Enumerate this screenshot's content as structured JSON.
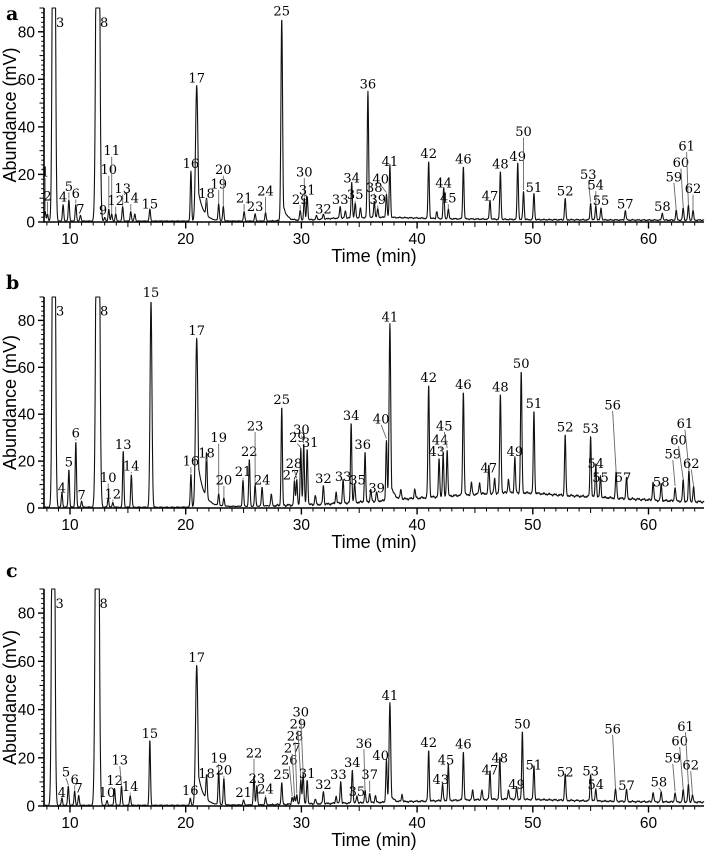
{
  "figure": {
    "x_axis_label": "Time (min)",
    "y_axis_label": "Abundance (mV)",
    "x_ticks": [
      10,
      20,
      30,
      40,
      50,
      60
    ],
    "y_ticks": [
      0,
      20,
      40,
      60,
      80
    ],
    "x_range": [
      7.75,
      64.8
    ],
    "y_range": [
      0,
      90
    ],
    "trace_color": "#111111",
    "axis_color": "#000000",
    "leader_color": "#666666",
    "background": "#ffffff"
  },
  "peak_format": [
    "label",
    "time_min",
    "height_mV",
    "label_y_mV",
    "label_x_min",
    "sigma_min",
    "tail_amp",
    "tail_len_min"
  ],
  "chart_data": [
    {
      "type": "line",
      "panel_letter": "a",
      "xlabel": "Time (min)",
      "ylabel": "Abundance (mV)",
      "baseline": [
        [
          7.7,
          0.4
        ],
        [
          27,
          0.4
        ],
        [
          29,
          0.6
        ],
        [
          31,
          1.0
        ],
        [
          33,
          1.6
        ],
        [
          35,
          1.8
        ],
        [
          37,
          2.0
        ],
        [
          39,
          1.8
        ],
        [
          42,
          1.4
        ],
        [
          46,
          1.2
        ],
        [
          50,
          1.0
        ],
        [
          55,
          0.9
        ],
        [
          60,
          0.8
        ],
        [
          64.8,
          0.8
        ]
      ],
      "peaks": [
        [
          1,
          7.85,
          4,
          21
        ],
        [
          2,
          8.05,
          3,
          11
        ],
        [
          3,
          8.6,
          300,
          84,
          9.15,
          0.1
        ],
        [
          4,
          9.4,
          7,
          10.5
        ],
        [
          5,
          9.9,
          9,
          15
        ],
        [
          6,
          10.5,
          7,
          12
        ],
        [
          7,
          10.9,
          2.5,
          5.5
        ],
        [
          8,
          12.4,
          300,
          84,
          12.95,
          0.12
        ],
        [
          9,
          13.0,
          1.5,
          5,
          12.85
        ],
        [
          10,
          13.35,
          5,
          22
        ],
        [
          11,
          13.6,
          3,
          30
        ],
        [
          12,
          13.95,
          3,
          9
        ],
        [
          13,
          14.55,
          6,
          14
        ],
        [
          14,
          15.25,
          4,
          10
        ],
        [
          "",
          15.6,
          3
        ],
        [
          15,
          16.9,
          5,
          7.5
        ],
        [
          16,
          20.45,
          21
        ],
        [
          17,
          20.95,
          57,
          null,
          null,
          0.1,
          0.3,
          0.45
        ],
        [
          18,
          21.8,
          7,
          12
        ],
        [
          19,
          22.85,
          7,
          16
        ],
        [
          20,
          23.25,
          6,
          22
        ],
        [
          21,
          25.05,
          4,
          10
        ],
        [
          23,
          26.0,
          3,
          6.5
        ],
        [
          24,
          26.9,
          3.5,
          13
        ],
        [
          25,
          28.3,
          85,
          null,
          null,
          0.07,
          0.12,
          0.3
        ],
        [
          29,
          29.9,
          4,
          9.5
        ],
        [
          30,
          30.25,
          9,
          21
        ],
        [
          31,
          30.5,
          10,
          13.5
        ],
        [
          "",
          31.3,
          1.5
        ],
        [
          32,
          31.9,
          2,
          5.5
        ],
        [
          33,
          33.35,
          5,
          9.5
        ],
        [
          "",
          33.8,
          3
        ],
        [
          34,
          34.35,
          15,
          18.5
        ],
        [
          35,
          34.65,
          6,
          11.5
        ],
        [
          "",
          35.1,
          4
        ],
        [
          36,
          35.75,
          53,
          null,
          null,
          0.06
        ],
        [
          38,
          36.3,
          7,
          14.5
        ],
        [
          39,
          36.6,
          3.5,
          9.5
        ],
        [
          40,
          37.35,
          10,
          18,
          36.85
        ],
        [
          41,
          37.65,
          22,
          25.5
        ],
        [
          42,
          41.0,
          24
        ],
        [
          "",
          41.7,
          3
        ],
        [
          44,
          42.3,
          13,
          16.5
        ],
        [
          45,
          42.7,
          4,
          10
        ],
        [
          46,
          44.0,
          22
        ],
        [
          47,
          46.3,
          8,
          11
        ],
        [
          48,
          47.2,
          20
        ],
        [
          49,
          48.7,
          24,
          27.5
        ],
        [
          50,
          49.2,
          12,
          38
        ],
        [
          51,
          50.1,
          11,
          14.5
        ],
        [
          52,
          52.8,
          9,
          13
        ],
        [
          53,
          55.0,
          7,
          20,
          54.8
        ],
        [
          54,
          55.45,
          6,
          15.5
        ],
        [
          55,
          55.9,
          5,
          9
        ],
        [
          57,
          58.0,
          4,
          7.5
        ],
        [
          58,
          61.2,
          3,
          6.5
        ],
        [
          59,
          62.4,
          4,
          19,
          62.2
        ],
        [
          60,
          63.0,
          5,
          25,
          62.8
        ],
        [
          61,
          63.45,
          6,
          32,
          63.3
        ],
        [
          62,
          63.85,
          4,
          14
        ]
      ]
    },
    {
      "type": "line",
      "panel_letter": "b",
      "xlabel": "Time (min)",
      "ylabel": "Abundance (mV)",
      "baseline": [
        [
          7.7,
          0.4
        ],
        [
          19,
          0.3
        ],
        [
          26,
          0.8
        ],
        [
          29,
          1.2
        ],
        [
          32,
          1.6
        ],
        [
          34,
          2.2
        ],
        [
          36,
          2.8
        ],
        [
          38,
          3.4
        ],
        [
          40,
          4.2
        ],
        [
          43,
          5.2
        ],
        [
          46,
          6.2
        ],
        [
          48,
          6.6
        ],
        [
          50,
          6.4
        ],
        [
          52,
          5.6
        ],
        [
          55,
          4.8
        ],
        [
          58,
          4.0
        ],
        [
          61,
          3.2
        ],
        [
          64.8,
          2.6
        ]
      ],
      "peaks": [
        [
          3,
          8.6,
          300,
          84,
          9.15,
          0.1
        ],
        [
          4,
          9.3,
          6,
          8.5
        ],
        [
          5,
          9.9,
          16
        ],
        [
          6,
          10.5,
          28,
          32
        ],
        [
          7,
          11.0,
          2.5,
          5.5
        ],
        [
          8,
          12.4,
          300,
          84,
          12.95,
          0.12
        ],
        [
          10,
          13.3,
          4,
          13
        ],
        [
          12,
          13.7,
          2,
          6
        ],
        [
          13,
          14.6,
          24,
          27
        ],
        [
          14,
          15.3,
          14,
          18
        ],
        [
          15,
          17.0,
          88,
          92,
          null,
          0.08
        ],
        [
          16,
          20.45,
          14,
          20
        ],
        [
          17,
          20.95,
          72,
          null,
          null,
          0.1,
          0.32,
          0.5
        ],
        [
          18,
          21.8,
          19,
          23.5
        ],
        [
          19,
          22.85,
          5,
          30
        ],
        [
          20,
          23.3,
          3.5,
          12
        ],
        [
          21,
          24.95,
          11,
          15.5
        ],
        [
          22,
          25.5,
          20,
          24
        ],
        [
          23,
          26.0,
          9,
          35
        ],
        [
          24,
          26.6,
          8,
          12
        ],
        [
          "",
          27.4,
          5
        ],
        [
          25,
          28.3,
          42
        ],
        [
          27,
          29.4,
          10,
          14,
          29.1
        ],
        [
          28,
          29.6,
          11,
          19,
          29.35
        ],
        [
          29,
          29.95,
          24,
          30,
          29.65
        ],
        [
          30,
          30.2,
          26,
          33.5,
          30.0
        ],
        [
          31,
          30.5,
          24,
          28,
          30.75
        ],
        [
          "",
          31.2,
          4
        ],
        [
          32,
          31.9,
          8,
          12.5
        ],
        [
          "",
          33.0,
          5
        ],
        [
          33,
          33.6,
          10,
          13.5
        ],
        [
          34,
          34.3,
          34
        ],
        [
          35,
          34.6,
          8,
          12,
          34.85
        ],
        [
          36,
          35.5,
          21,
          27,
          35.3
        ],
        [
          "",
          36.0,
          5
        ],
        [
          39,
          36.5,
          4,
          8.5
        ],
        [
          40,
          37.35,
          26,
          38,
          36.9
        ],
        [
          41,
          37.65,
          75,
          null,
          null,
          0.07,
          0.12,
          0.3
        ],
        [
          "",
          38.6,
          4
        ],
        [
          "",
          39.8,
          4
        ],
        [
          42,
          41.0,
          48,
          null,
          null,
          0.06
        ],
        [
          43,
          41.9,
          16,
          24,
          41.7
        ],
        [
          44,
          42.25,
          18,
          29,
          42.0
        ],
        [
          45,
          42.6,
          20,
          35,
          42.35
        ],
        [
          46,
          44.0,
          44,
          null,
          null,
          0.06
        ],
        [
          "",
          44.7,
          5
        ],
        [
          "",
          45.4,
          5
        ],
        [
          47,
          46.2,
          12,
          17
        ],
        [
          "",
          46.7,
          6
        ],
        [
          48,
          47.2,
          42,
          null,
          null,
          0.06
        ],
        [
          "",
          47.9,
          6
        ],
        [
          49,
          48.45,
          15,
          24
        ],
        [
          50,
          49.0,
          52,
          null,
          null,
          0.06
        ],
        [
          51,
          50.1,
          35
        ],
        [
          52,
          52.8,
          26
        ],
        [
          53,
          55.0,
          26
        ],
        [
          54,
          55.45,
          14,
          19
        ],
        [
          55,
          55.85,
          9,
          13
        ],
        [
          56,
          57.2,
          11,
          44,
          56.9
        ],
        [
          57,
          58.1,
          9,
          13,
          57.8
        ],
        [
          "",
          60.4,
          8
        ],
        [
          58,
          61.1,
          7,
          11
        ],
        [
          59,
          62.3,
          6,
          23,
          62.1
        ],
        [
          60,
          63.0,
          9,
          29,
          62.6
        ],
        [
          61,
          63.5,
          13,
          36,
          63.15
        ],
        [
          62,
          63.9,
          6,
          19,
          63.7
        ]
      ]
    },
    {
      "type": "line",
      "panel_letter": "c",
      "xlabel": "Time (min)",
      "ylabel": "Abundance (mV)",
      "baseline": [
        [
          7.7,
          0.3
        ],
        [
          20,
          0.3
        ],
        [
          27,
          0.5
        ],
        [
          30,
          0.8
        ],
        [
          33,
          1.1
        ],
        [
          36,
          1.4
        ],
        [
          39,
          1.8
        ],
        [
          42,
          2.2
        ],
        [
          45,
          2.6
        ],
        [
          48,
          2.9
        ],
        [
          51,
          2.6
        ],
        [
          55,
          2.1
        ],
        [
          59,
          1.8
        ],
        [
          64.8,
          1.6
        ]
      ],
      "peaks": [
        [
          3,
          8.55,
          300,
          84,
          9.1,
          0.1
        ],
        [
          4,
          9.3,
          3,
          5.5
        ],
        [
          5,
          9.85,
          8,
          14,
          9.65
        ],
        [
          6,
          10.4,
          6,
          11
        ],
        [
          7,
          10.75,
          4,
          7.5
        ],
        [
          8,
          12.35,
          300,
          84,
          12.9,
          0.12
        ],
        [
          10,
          13.2,
          2,
          5.5
        ],
        [
          12,
          13.85,
          7,
          10.5
        ],
        [
          13,
          14.45,
          8,
          19,
          14.3
        ],
        [
          14,
          15.2,
          4,
          8
        ],
        [
          15,
          16.9,
          27,
          30
        ],
        [
          16,
          20.4,
          3,
          6.5
        ],
        [
          17,
          20.95,
          58,
          null,
          null,
          0.1,
          0.3,
          0.45
        ],
        [
          18,
          21.8,
          10,
          13.5
        ],
        [
          19,
          22.85,
          14,
          20
        ],
        [
          20,
          23.3,
          11,
          15
        ],
        [
          21,
          25.0,
          2,
          5.5
        ],
        [
          22,
          25.9,
          12,
          22
        ],
        [
          23,
          26.15,
          8,
          11.5
        ],
        [
          24,
          26.9,
          3,
          7
        ],
        [
          25,
          28.3,
          9,
          13
        ],
        [
          26,
          29.2,
          3,
          19,
          28.95
        ],
        [
          27,
          29.4,
          3,
          24,
          29.2
        ],
        [
          28,
          29.6,
          4,
          29,
          29.45
        ],
        [
          29,
          29.95,
          10,
          34,
          29.7
        ],
        [
          30,
          30.15,
          13,
          39,
          29.95
        ],
        [
          31,
          30.5,
          10,
          13.5
        ],
        [
          "",
          31.2,
          2
        ],
        [
          32,
          31.9,
          5,
          9
        ],
        [
          "",
          33.0,
          3
        ],
        [
          33,
          33.4,
          9,
          13,
          33.2
        ],
        [
          34,
          34.4,
          14,
          18
        ],
        [
          35,
          34.8,
          3,
          6
        ],
        [
          36,
          35.5,
          5,
          26,
          35.4
        ],
        [
          37,
          35.9,
          4,
          13
        ],
        [
          "",
          36.4,
          3
        ],
        [
          40,
          37.35,
          18,
          21,
          36.85
        ],
        [
          41,
          37.65,
          41,
          null,
          null,
          0.07,
          0.1,
          0.25
        ],
        [
          "",
          38.7,
          3
        ],
        [
          42,
          41.0,
          21
        ],
        [
          43,
          42.2,
          7,
          11,
          42.05
        ],
        [
          45,
          42.7,
          15,
          19,
          42.5
        ],
        [
          46,
          44.0,
          20
        ],
        [
          "",
          44.8,
          4
        ],
        [
          "",
          45.6,
          4
        ],
        [
          47,
          46.3,
          12,
          15
        ],
        [
          48,
          47.15,
          17,
          20
        ],
        [
          "",
          47.9,
          4
        ],
        [
          49,
          48.6,
          5,
          9
        ],
        [
          50,
          49.1,
          28
        ],
        [
          51,
          50.1,
          14,
          17
        ],
        [
          52,
          52.8,
          11,
          14
        ],
        [
          53,
          55.0,
          11,
          14.5
        ],
        [
          54,
          55.45,
          5,
          9
        ],
        [
          56,
          57.15,
          5,
          32,
          56.9
        ],
        [
          57,
          58.1,
          5,
          8.5
        ],
        [
          "",
          60.4,
          4
        ],
        [
          58,
          61.1,
          4,
          10,
          60.9
        ],
        [
          59,
          62.3,
          4,
          20,
          62.1
        ],
        [
          60,
          63.0,
          5,
          27,
          62.7
        ],
        [
          61,
          63.45,
          7,
          33,
          63.2
        ],
        [
          62,
          63.8,
          3,
          17,
          63.65
        ]
      ]
    }
  ]
}
